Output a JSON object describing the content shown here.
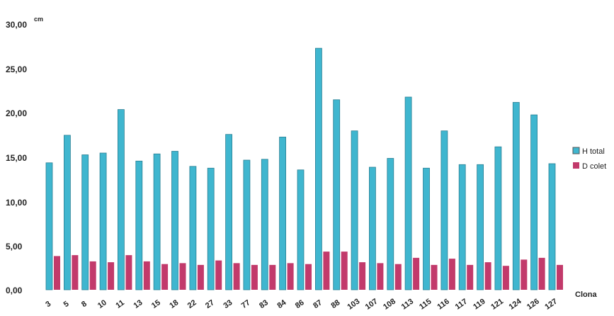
{
  "chart_data": {
    "type": "bar",
    "unit": "cm",
    "xlabel": "Clona",
    "ylabel": "",
    "ylim": [
      0,
      30
    ],
    "yticks": [
      "0,00",
      "5,00",
      "10,00",
      "15,00",
      "20,00",
      "25,00",
      "30,00"
    ],
    "grid": false,
    "legend_position": "right",
    "categories": [
      "3",
      "5",
      "8",
      "10",
      "11",
      "13",
      "15",
      "18",
      "22",
      "27",
      "33",
      "77",
      "83",
      "84",
      "86",
      "87",
      "88",
      "103",
      "107",
      "108",
      "113",
      "115",
      "116",
      "117",
      "119",
      "121",
      "124",
      "126",
      "127"
    ],
    "series": [
      {
        "name": "H total",
        "color": "#3fb6cf",
        "values": [
          14.3,
          17.4,
          15.2,
          15.4,
          20.3,
          14.5,
          15.3,
          15.6,
          13.9,
          13.7,
          17.5,
          14.6,
          14.7,
          17.2,
          13.5,
          27.2,
          21.4,
          17.9,
          13.8,
          14.8,
          21.7,
          13.7,
          17.9,
          14.1,
          14.1,
          16.1,
          21.1,
          19.7,
          14.2
        ]
      },
      {
        "name": "D colet",
        "color": "#c23a6b",
        "values": [
          3.8,
          3.9,
          3.2,
          3.1,
          3.9,
          3.2,
          2.9,
          3.0,
          2.8,
          3.3,
          3.0,
          2.8,
          2.8,
          3.0,
          2.9,
          4.3,
          4.3,
          3.1,
          3.0,
          2.9,
          3.6,
          2.8,
          3.5,
          2.8,
          3.1,
          2.7,
          3.4,
          3.6,
          2.8
        ]
      }
    ]
  }
}
